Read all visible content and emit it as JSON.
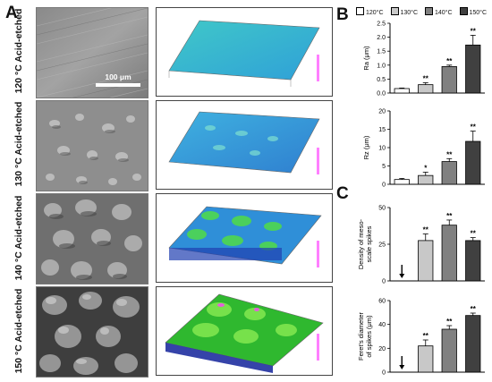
{
  "panels": {
    "a": "A",
    "b": "B",
    "c": "C"
  },
  "rows": [
    {
      "label": "120 °C Acid-etched",
      "scale_bar": "100 μm"
    },
    {
      "label": "130 °C Acid-etched"
    },
    {
      "label": "140 °C Acid-etched"
    },
    {
      "label": "150 °C Acid-etched"
    }
  ],
  "legend": [
    {
      "label": "120°C",
      "color": "#ffffff"
    },
    {
      "label": "130°C",
      "color": "#c8c8c8"
    },
    {
      "label": "140°C",
      "color": "#808080"
    },
    {
      "label": "150°C",
      "color": "#404040"
    }
  ],
  "chart_data": [
    {
      "type": "bar",
      "panel": "B",
      "categories": [
        "120°C",
        "130°C",
        "140°C",
        "150°C"
      ],
      "values": [
        0.16,
        0.3,
        0.95,
        1.72
      ],
      "errors": [
        0.02,
        0.07,
        0.05,
        0.35
      ],
      "significance": [
        "",
        "**",
        "**",
        "**"
      ],
      "ylabel": "Ra (μm)",
      "ylim": [
        0,
        2.5
      ],
      "yticks": [
        "0.0",
        "0.5",
        "1.0",
        "1.5",
        "2.0",
        "2.5"
      ]
    },
    {
      "type": "bar",
      "panel": "B",
      "categories": [
        "120°C",
        "130°C",
        "140°C",
        "150°C"
      ],
      "values": [
        1.3,
        2.4,
        6.2,
        11.7
      ],
      "errors": [
        0.3,
        0.9,
        0.8,
        2.8
      ],
      "significance": [
        "",
        "*",
        "**",
        "**"
      ],
      "ylabel": "Rz (μm)",
      "ylim": [
        0,
        20
      ],
      "yticks": [
        "0",
        "5",
        "10",
        "15",
        "20"
      ]
    },
    {
      "type": "bar",
      "panel": "C",
      "categories": [
        "120°C",
        "130°C",
        "140°C",
        "150°C"
      ],
      "values": [
        null,
        27.5,
        38,
        27.5
      ],
      "errors": [
        0,
        4.5,
        3.5,
        2.0
      ],
      "significance": [
        "",
        "**",
        "**",
        "**"
      ],
      "ylabel": "Density of meso-scale spikes",
      "ylim": [
        0,
        50
      ],
      "yticks": [
        "0",
        "25",
        "50"
      ]
    },
    {
      "type": "bar",
      "panel": "C",
      "categories": [
        "120°C",
        "130°C",
        "140°C",
        "150°C"
      ],
      "values": [
        null,
        22,
        36,
        47.5
      ],
      "errors": [
        0,
        5,
        3,
        2
      ],
      "significance": [
        "",
        "**",
        "**",
        "**"
      ],
      "ylabel": "Feret's diameter of spikes (μm)",
      "ylim": [
        0,
        60
      ],
      "yticks": [
        "0",
        "20",
        "40",
        "60"
      ]
    }
  ]
}
